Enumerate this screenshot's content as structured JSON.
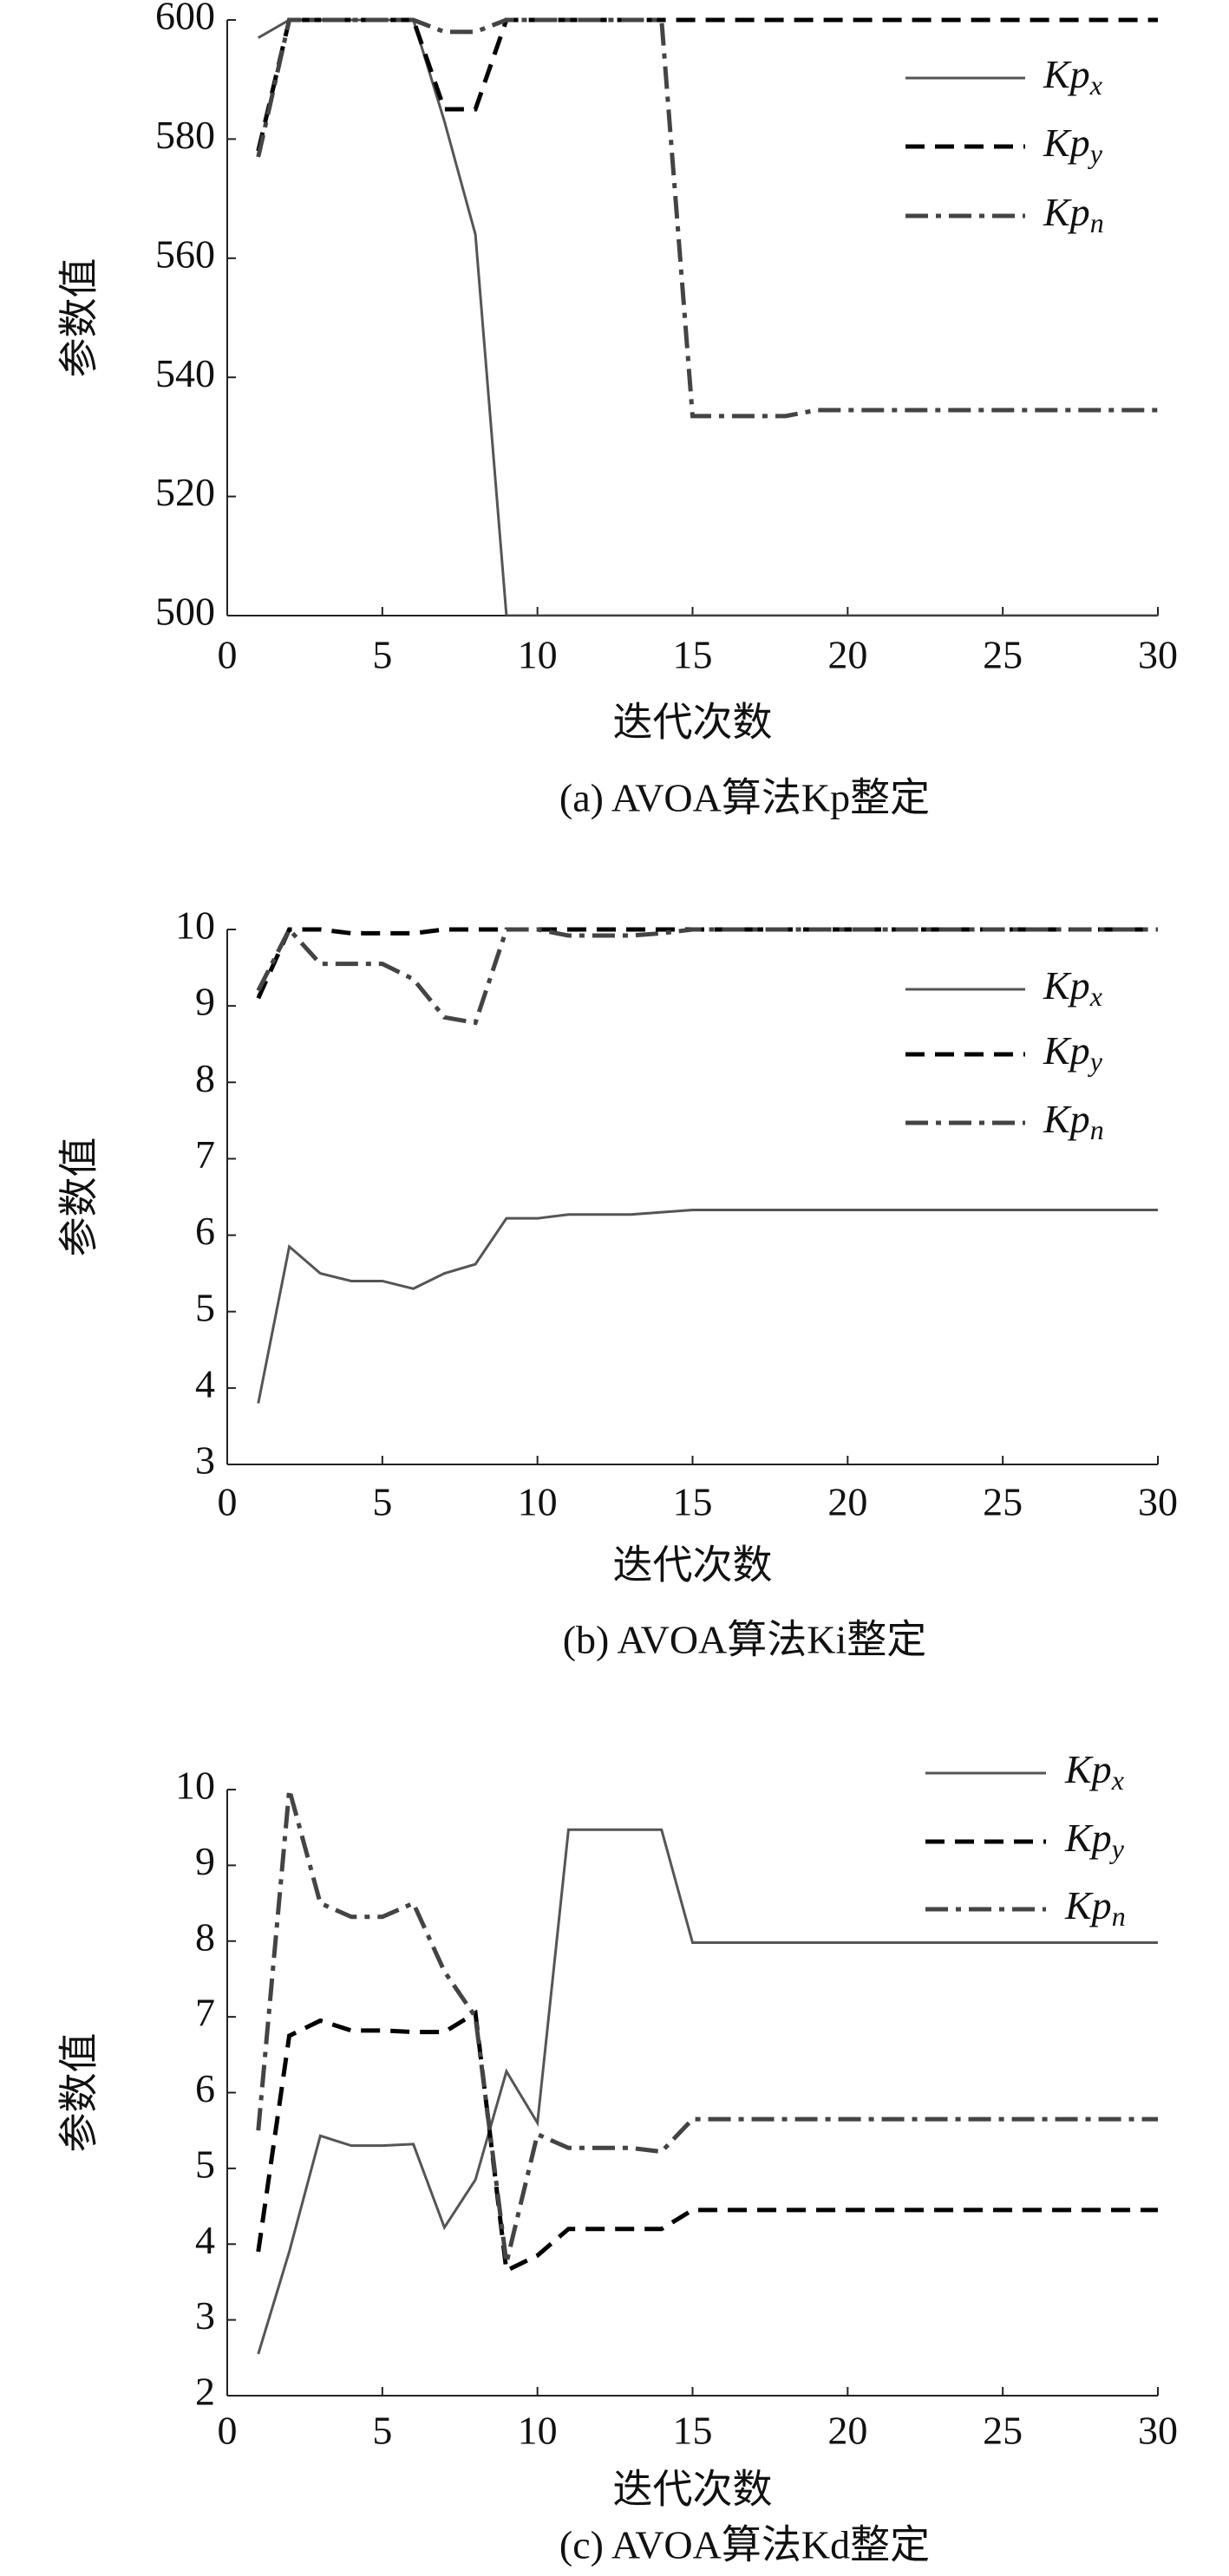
{
  "chart_data": [
    {
      "type": "line",
      "title": "(a) AVOA算法Kp整定",
      "x_label": "迭代次数",
      "y_label": "参数值",
      "x": [
        1,
        2,
        3,
        4,
        5,
        6,
        7,
        8,
        9,
        10,
        11,
        12,
        13,
        14,
        15,
        16,
        17,
        18,
        19,
        20,
        21,
        22,
        23,
        24,
        25,
        26,
        27,
        28,
        29,
        30
      ],
      "xlim": [
        0,
        30
      ],
      "xticks": [
        0,
        5,
        10,
        15,
        20,
        25,
        30
      ],
      "ylim": [
        500,
        600
      ],
      "yticks": [
        500,
        520,
        540,
        560,
        580,
        600
      ],
      "legend": "upper right",
      "series": [
        {
          "name": "Kpx",
          "color": "#555555",
          "style": "solid",
          "values": [
            597,
            600,
            600,
            600,
            600,
            600,
            583,
            564,
            500,
            500,
            500,
            500,
            500,
            500,
            500,
            500,
            500,
            500,
            500,
            500,
            500,
            500,
            500,
            500,
            500,
            500,
            500,
            500,
            500,
            500
          ]
        },
        {
          "name": "Kpy",
          "color": "#000000",
          "style": "dashed",
          "values": [
            578,
            600,
            600,
            600,
            600,
            600,
            585,
            585,
            600,
            600,
            600,
            600,
            600,
            600,
            600,
            600,
            600,
            600,
            600,
            600,
            600,
            600,
            600,
            600,
            600,
            600,
            600,
            600,
            600,
            600
          ]
        },
        {
          "name": "Kpn",
          "color": "#444444",
          "style": "dashdot",
          "values": [
            577,
            600,
            600,
            600,
            600,
            600,
            598,
            598,
            600,
            600,
            600,
            600,
            600,
            600,
            533.5,
            533.5,
            533.5,
            533.5,
            534.5,
            534.5,
            534.5,
            534.5,
            534.5,
            534.5,
            534.5,
            534.5,
            534.5,
            534.5,
            534.5,
            534.5
          ]
        }
      ]
    },
    {
      "type": "line",
      "title": "(b) AVOA算法Ki整定",
      "x_label": "迭代次数",
      "y_label": "参数值",
      "x": [
        1,
        2,
        3,
        4,
        5,
        6,
        7,
        8,
        9,
        10,
        11,
        12,
        13,
        14,
        15,
        16,
        17,
        18,
        19,
        20,
        21,
        22,
        23,
        24,
        25,
        26,
        27,
        28,
        29,
        30
      ],
      "xlim": [
        0,
        30
      ],
      "xticks": [
        0,
        5,
        10,
        15,
        20,
        25,
        30
      ],
      "ylim": [
        3,
        10
      ],
      "yticks": [
        3,
        4,
        5,
        6,
        7,
        8,
        9,
        10
      ],
      "legend": "upper right",
      "series": [
        {
          "name": "Kpx",
          "color": "#555555",
          "style": "solid",
          "values": [
            3.8,
            5.85,
            5.5,
            5.4,
            5.4,
            5.3,
            5.5,
            5.62,
            6.22,
            6.22,
            6.27,
            6.27,
            6.27,
            6.3,
            6.33,
            6.33,
            6.33,
            6.33,
            6.33,
            6.33,
            6.33,
            6.33,
            6.33,
            6.33,
            6.33,
            6.33,
            6.33,
            6.33,
            6.33,
            6.33
          ]
        },
        {
          "name": "Kpy",
          "color": "#000000",
          "style": "dashed",
          "values": [
            9.1,
            10,
            10,
            9.95,
            9.95,
            9.95,
            10,
            10,
            10,
            10,
            10,
            10,
            10,
            10,
            10,
            10,
            10,
            10,
            10,
            10,
            10,
            10,
            10,
            10,
            10,
            10,
            10,
            10,
            10,
            10
          ]
        },
        {
          "name": "Kpn",
          "color": "#444444",
          "style": "dashdot",
          "values": [
            9.2,
            10,
            9.55,
            9.55,
            9.55,
            9.35,
            8.85,
            8.78,
            10,
            10,
            9.92,
            9.92,
            9.92,
            9.95,
            10,
            10,
            10,
            10,
            10,
            10,
            10,
            10,
            10,
            10,
            10,
            10,
            10,
            10,
            10,
            10
          ]
        }
      ]
    },
    {
      "type": "line",
      "title": "(c) AVOA算法Kd整定",
      "x_label": "迭代次数",
      "y_label": "参数值",
      "x": [
        1,
        2,
        3,
        4,
        5,
        6,
        7,
        8,
        9,
        10,
        11,
        12,
        13,
        14,
        15,
        16,
        17,
        18,
        19,
        20,
        21,
        22,
        23,
        24,
        25,
        26,
        27,
        28,
        29,
        30
      ],
      "xlim": [
        0,
        30
      ],
      "xticks": [
        0,
        5,
        10,
        15,
        20,
        25,
        30
      ],
      "ylim": [
        2,
        10
      ],
      "yticks": [
        2,
        3,
        4,
        5,
        6,
        7,
        8,
        9,
        10
      ],
      "legend": "upper right",
      "series": [
        {
          "name": "Kpx",
          "color": "#555555",
          "style": "solid",
          "values": [
            2.55,
            3.9,
            5.43,
            5.3,
            5.3,
            5.32,
            4.22,
            4.85,
            6.28,
            5.6,
            9.47,
            9.47,
            9.47,
            9.47,
            7.98,
            7.98,
            7.98,
            7.98,
            7.98,
            7.98,
            7.98,
            7.98,
            7.98,
            7.98,
            7.98,
            7.98,
            7.98,
            7.98,
            7.98,
            7.98
          ]
        },
        {
          "name": "Kpy",
          "color": "#000000",
          "style": "dashed",
          "values": [
            3.9,
            6.75,
            6.95,
            6.82,
            6.82,
            6.8,
            6.8,
            7.05,
            3.65,
            3.85,
            4.2,
            4.2,
            4.2,
            4.2,
            4.45,
            4.45,
            4.45,
            4.45,
            4.45,
            4.45,
            4.45,
            4.45,
            4.45,
            4.45,
            4.45,
            4.45,
            4.45,
            4.45,
            4.45,
            4.45
          ]
        },
        {
          "name": "Kpn",
          "color": "#444444",
          "style": "dashdot",
          "values": [
            5.5,
            10,
            8.5,
            8.32,
            8.32,
            8.5,
            7.6,
            7.0,
            3.75,
            5.45,
            5.27,
            5.27,
            5.27,
            5.22,
            5.65,
            5.65,
            5.65,
            5.65,
            5.65,
            5.65,
            5.65,
            5.65,
            5.65,
            5.65,
            5.65,
            5.65,
            5.65,
            5.65,
            5.65,
            5.65
          ]
        }
      ]
    }
  ]
}
